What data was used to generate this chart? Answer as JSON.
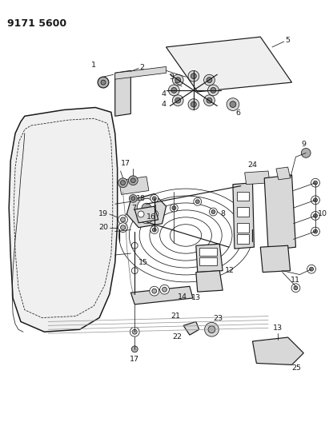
{
  "title": "9171 5600",
  "bg_color": "#ffffff",
  "line_color": "#1a1a1a",
  "figsize": [
    4.11,
    5.33
  ],
  "dpi": 100,
  "title_fs": 9,
  "label_fs": 6.8,
  "lw_thin": 0.55,
  "lw_med": 0.85,
  "lw_thick": 1.1,
  "gray_light": "#d8d8d8",
  "gray_med": "#b0b0b0",
  "gray_dark": "#888888",
  "glass_color": "#efefef",
  "door_color": "#f0f0f0",
  "part_color": "#cccccc"
}
